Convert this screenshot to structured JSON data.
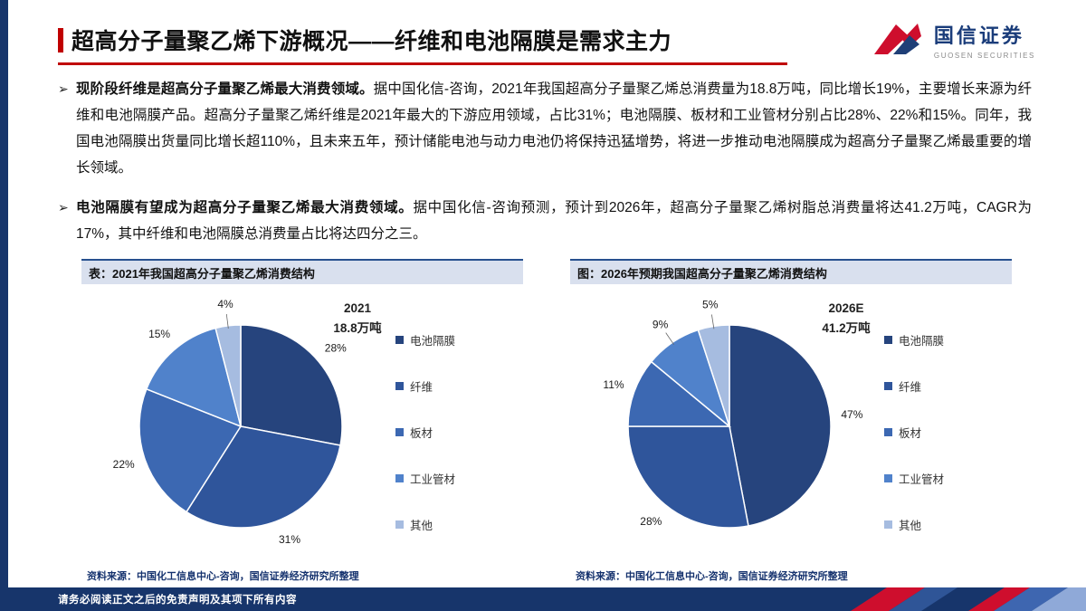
{
  "header": {
    "title": "超高分子量聚乙烯下游概况——纤维和电池隔膜是需求主力",
    "logo_cn": "国信证券",
    "logo_en": "GUOSEN SECURITIES"
  },
  "bullet_marker": "➢",
  "bullets": [
    {
      "bold": "现阶段纤维是超高分子量聚乙烯最大消费领域。",
      "text": "据中国化信-咨询，2021年我国超高分子量聚乙烯总消费量为18.8万吨，同比增长19%，主要增长来源为纤维和电池隔膜产品。超高分子量聚乙烯纤维是2021年最大的下游应用领域，占比31%；电池隔膜、板材和工业管材分别占比28%、22%和15%。同年，我国电池隔膜出货量同比增长超110%，且未来五年，预计储能电池与动力电池仍将保持迅猛增势，将进一步推动电池隔膜成为超高分子量聚乙烯最重要的增长领域。"
    },
    {
      "bold": "电池隔膜有望成为超高分子量聚乙烯最大消费领域。",
      "text": "据中国化信-咨询预测，预计到2026年，超高分子量聚乙烯树脂总消费量将达41.2万吨，CAGR为17%，其中纤维和电池隔膜总消费量占比将达四分之三。"
    }
  ],
  "chart_data": [
    {
      "type": "pie",
      "title": "表：2021年我国超高分子量聚乙烯消费结构",
      "center_label": [
        "2021",
        "18.8万吨"
      ],
      "categories": [
        "电池隔膜",
        "纤维",
        "板材",
        "工业管材",
        "其他"
      ],
      "values": [
        28,
        31,
        22,
        15,
        4
      ],
      "colors": [
        "#26447D",
        "#2F559B",
        "#3C68B2",
        "#5082CB",
        "#A6BCE0"
      ],
      "legend_position": "right",
      "start_angle": 0,
      "source": "资料来源：中国化工信息中心-咨询，国信证券经济研究所整理"
    },
    {
      "type": "pie",
      "title": "图：2026年预期我国超高分子量聚乙烯消费结构",
      "center_label": [
        "2026E",
        "41.2万吨"
      ],
      "categories": [
        "电池隔膜",
        "纤维",
        "板材",
        "工业管材",
        "其他"
      ],
      "values": [
        47,
        28,
        11,
        9,
        5
      ],
      "colors": [
        "#26447D",
        "#2F559B",
        "#3C68B2",
        "#5082CB",
        "#A6BCE0"
      ],
      "legend_position": "right",
      "start_angle": 0,
      "source": "资料来源：中国化工信息中心-咨询，国信证券经济研究所整理"
    }
  ],
  "footer": {
    "text": "请务必阅读正文之后的免责声明及其项下所有内容"
  },
  "colors": {
    "accent_red": "#C00000",
    "brand_navy": "#17356B",
    "panel_header_bg": "#D9E0EE",
    "footer_red": "#CE0E2D"
  }
}
